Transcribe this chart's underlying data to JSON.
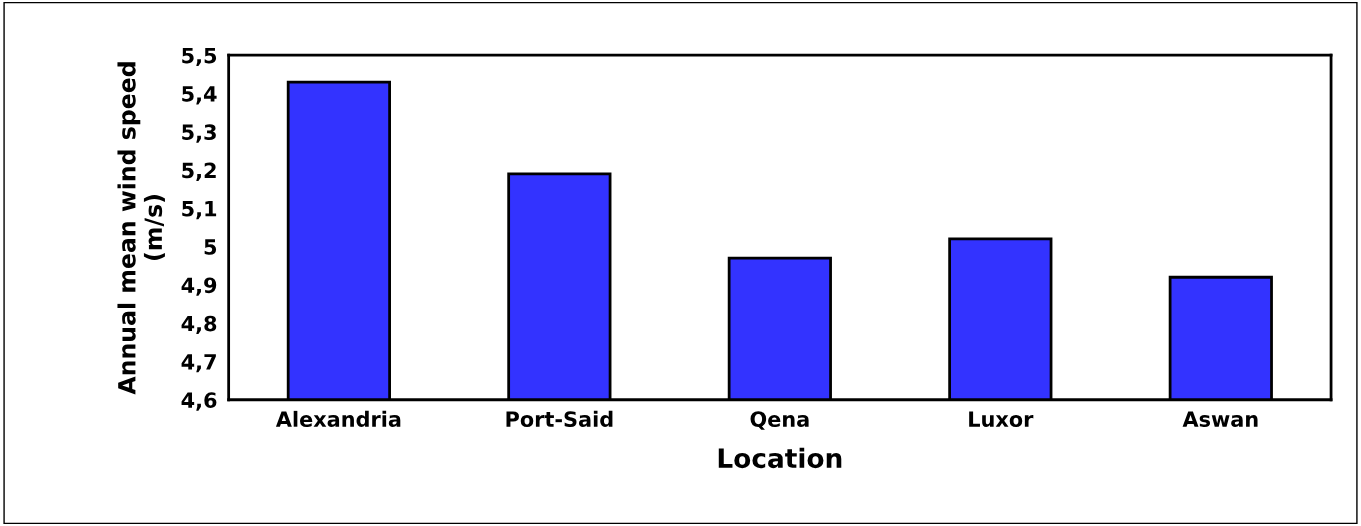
{
  "chart_data": {
    "type": "bar",
    "xlabel": "Location",
    "ylabel": "Annual mean wind speed\n(m/s)",
    "categories": [
      "Alexandria",
      "Port-Said",
      "Qena",
      "Luxor",
      "Aswan"
    ],
    "values": [
      5.43,
      5.19,
      4.97,
      5.02,
      4.92
    ],
    "color": "#3333ff",
    "ylim": [
      4.6,
      5.5
    ],
    "yticks": [
      {
        "value": 4.6,
        "label": "4,6"
      },
      {
        "value": 4.7,
        "label": "4,7"
      },
      {
        "value": 4.8,
        "label": "4,8"
      },
      {
        "value": 4.9,
        "label": "4,9"
      },
      {
        "value": 5,
        "label": "5"
      },
      {
        "value": 5.1,
        "label": "5,1"
      },
      {
        "value": 5.2,
        "label": "5,2"
      },
      {
        "value": 5.3,
        "label": "5,3"
      },
      {
        "value": 5.4,
        "label": "5,4"
      },
      {
        "value": 5.5,
        "label": "5,5"
      }
    ],
    "grid": false
  }
}
